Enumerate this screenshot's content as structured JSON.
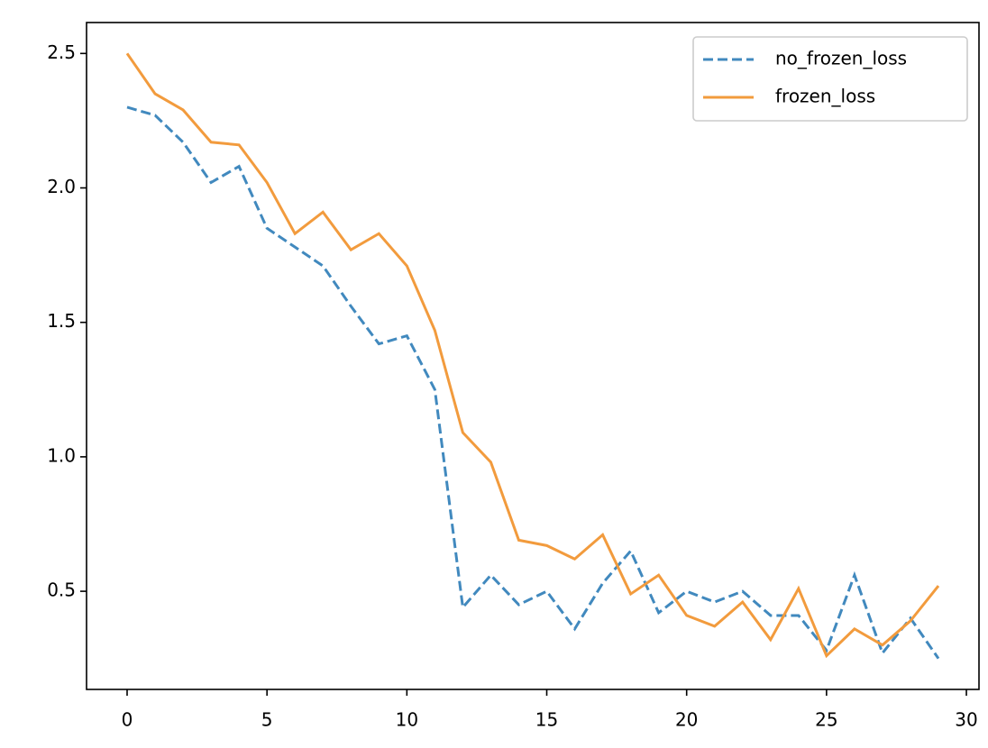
{
  "chart_data": {
    "type": "line",
    "x": [
      0,
      1,
      2,
      3,
      4,
      5,
      6,
      7,
      8,
      9,
      10,
      11,
      12,
      13,
      14,
      15,
      16,
      17,
      18,
      19,
      20,
      21,
      22,
      23,
      24,
      25,
      26,
      27,
      28,
      29
    ],
    "series": [
      {
        "name": "no_frozen_loss",
        "color": "#4189be",
        "dash": true,
        "values": [
          2.3,
          2.27,
          2.17,
          2.02,
          2.08,
          1.85,
          1.78,
          1.71,
          1.56,
          1.42,
          1.45,
          1.25,
          0.44,
          0.56,
          0.45,
          0.5,
          0.36,
          0.53,
          0.65,
          0.42,
          0.5,
          0.46,
          0.5,
          0.41,
          0.41,
          0.28,
          0.56,
          0.27,
          0.4,
          0.25
        ]
      },
      {
        "name": "frozen_loss",
        "color": "#f29b3d",
        "dash": false,
        "values": [
          2.5,
          2.35,
          2.29,
          2.17,
          2.16,
          2.02,
          1.83,
          1.91,
          1.77,
          1.83,
          1.71,
          1.47,
          1.09,
          0.98,
          0.69,
          0.67,
          0.62,
          0.71,
          0.49,
          0.56,
          0.41,
          0.37,
          0.46,
          0.32,
          0.51,
          0.26,
          0.36,
          0.3,
          0.39,
          0.52
        ]
      }
    ],
    "xlim": [
      -1.45,
      30.45
    ],
    "ylim": [
      0.135,
      2.615
    ],
    "xticks": [
      0,
      5,
      10,
      15,
      20,
      25,
      30
    ],
    "yticks": [
      0.5,
      {
        "value": 1,
        "label": "1.0"
      },
      1.5,
      {
        "value": 2,
        "label": "2.0"
      },
      2.5
    ],
    "grid": false,
    "legend": "upper right"
  }
}
